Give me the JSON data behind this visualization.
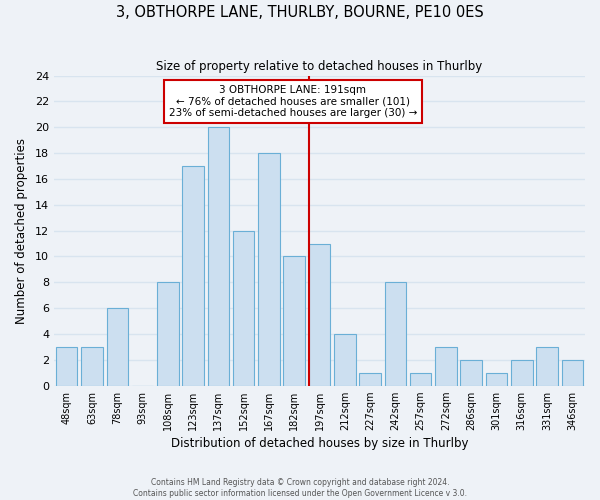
{
  "title": "3, OBTHORPE LANE, THURLBY, BOURNE, PE10 0ES",
  "subtitle": "Size of property relative to detached houses in Thurlby",
  "xlabel": "Distribution of detached houses by size in Thurlby",
  "ylabel": "Number of detached properties",
  "footer_line1": "Contains HM Land Registry data © Crown copyright and database right 2024.",
  "footer_line2": "Contains public sector information licensed under the Open Government Licence v 3.0.",
  "bin_labels": [
    "48sqm",
    "63sqm",
    "78sqm",
    "93sqm",
    "108sqm",
    "123sqm",
    "137sqm",
    "152sqm",
    "167sqm",
    "182sqm",
    "197sqm",
    "212sqm",
    "227sqm",
    "242sqm",
    "257sqm",
    "272sqm",
    "286sqm",
    "301sqm",
    "316sqm",
    "331sqm",
    "346sqm"
  ],
  "counts": [
    3,
    3,
    6,
    0,
    8,
    17,
    20,
    12,
    18,
    10,
    11,
    4,
    1,
    8,
    1,
    3,
    2,
    1,
    2,
    3,
    2
  ],
  "bar_color": "#ccdff0",
  "bar_edge_color": "#6aafd6",
  "property_bin_index": 10,
  "property_line_color": "#cc0000",
  "annotation_title": "3 OBTHORPE LANE: 191sqm",
  "annotation_line1": "← 76% of detached houses are smaller (101)",
  "annotation_line2": "23% of semi-detached houses are larger (30) →",
  "annotation_box_color": "#ffffff",
  "annotation_box_edge_color": "#cc0000",
  "ylim": [
    0,
    24
  ],
  "yticks": [
    0,
    2,
    4,
    6,
    8,
    10,
    12,
    14,
    16,
    18,
    20,
    22,
    24
  ],
  "background_color": "#eef2f7",
  "grid_color": "#d8e4ef"
}
